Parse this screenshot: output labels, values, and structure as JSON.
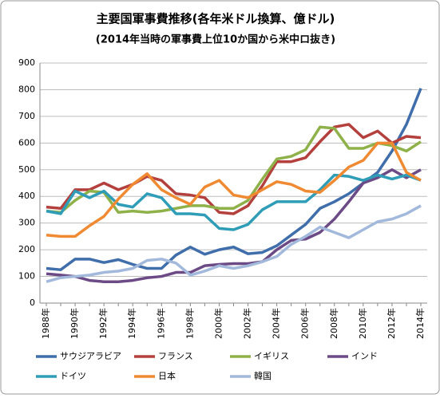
{
  "chart_data": {
    "type": "line",
    "title": "主要国軍事費推移(各年米ドル換算、億ドル)",
    "subtitle": "(2014年当時の軍事費上位10か国から米中ロ抜き)",
    "categories": [
      "1988年",
      null,
      "1990年",
      null,
      "1992年",
      null,
      "1994年",
      null,
      "1996年",
      null,
      "1998年",
      null,
      "2000年",
      null,
      "2002年",
      null,
      "2004年",
      null,
      "2006年",
      null,
      "2008年",
      null,
      "2010年",
      null,
      "2012年",
      null,
      "2014年"
    ],
    "series": [
      {
        "name": "サウジアラビア",
        "color": "#3f6eab",
        "values": [
          130,
          125,
          165,
          165,
          152,
          163,
          145,
          130,
          130,
          180,
          210,
          183,
          200,
          210,
          185,
          190,
          215,
          255,
          295,
          355,
          380,
          410,
          450,
          490,
          570,
          670,
          805
        ]
      },
      {
        "name": "フランス",
        "color": "#b3403c",
        "values": [
          360,
          355,
          425,
          425,
          450,
          425,
          445,
          475,
          460,
          410,
          405,
          395,
          340,
          335,
          365,
          440,
          530,
          530,
          545,
          605,
          660,
          670,
          620,
          645,
          600,
          625,
          620
        ]
      },
      {
        "name": "イギリス",
        "color": "#8fb14a",
        "values": [
          345,
          340,
          385,
          420,
          415,
          340,
          345,
          340,
          345,
          355,
          365,
          365,
          355,
          355,
          385,
          465,
          540,
          550,
          575,
          660,
          655,
          580,
          580,
          600,
          590,
          570,
          605
        ]
      },
      {
        "name": "インド",
        "color": "#6b4a86",
        "values": [
          110,
          105,
          100,
          85,
          80,
          80,
          85,
          95,
          100,
          115,
          115,
          140,
          145,
          148,
          148,
          155,
          200,
          235,
          240,
          265,
          315,
          380,
          450,
          470,
          500,
          470,
          500
        ]
      },
      {
        "name": "ドイツ",
        "color": "#2f9db7",
        "values": [
          345,
          335,
          420,
          395,
          420,
          370,
          360,
          410,
          395,
          335,
          335,
          330,
          280,
          275,
          295,
          350,
          380,
          380,
          380,
          425,
          480,
          475,
          460,
          480,
          465,
          480,
          460
        ]
      },
      {
        "name": "日本",
        "color": "#ef8a32",
        "values": [
          255,
          250,
          250,
          290,
          325,
          390,
          445,
          485,
          425,
          395,
          370,
          435,
          460,
          405,
          395,
          425,
          455,
          445,
          420,
          415,
          460,
          510,
          535,
          600,
          600,
          490,
          460
        ]
      },
      {
        "name": "韓国",
        "color": "#a3b9dc",
        "values": [
          80,
          95,
          100,
          105,
          115,
          120,
          130,
          160,
          165,
          150,
          105,
          120,
          140,
          130,
          140,
          155,
          175,
          220,
          250,
          285,
          265,
          245,
          275,
          305,
          315,
          335,
          365
        ]
      }
    ],
    "ylim": [
      0,
      900
    ],
    "yticks": [
      0,
      100,
      200,
      300,
      400,
      500,
      600,
      700,
      800,
      900
    ],
    "grid": true
  }
}
